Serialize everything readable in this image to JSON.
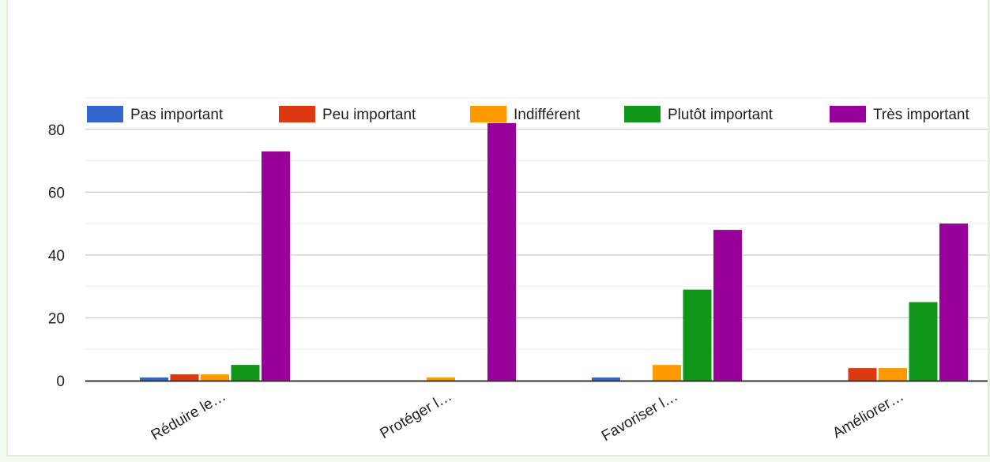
{
  "chart_data": {
    "type": "bar",
    "categories": [
      "Réduire le…",
      "Protéger l…",
      "Favoriser l…",
      "Améliorer…"
    ],
    "series": [
      {
        "name": "Pas important",
        "color": "#3366cc",
        "values": [
          1,
          0,
          1,
          0
        ]
      },
      {
        "name": "Peu important",
        "color": "#dc3912",
        "values": [
          2,
          0,
          0,
          4
        ]
      },
      {
        "name": "Indifférent",
        "color": "#ff9900",
        "values": [
          2,
          1,
          5,
          4
        ]
      },
      {
        "name": "Plutôt important",
        "color": "#109618",
        "values": [
          5,
          0,
          29,
          25
        ]
      },
      {
        "name": "Très important",
        "color": "#990099",
        "values": [
          73,
          82,
          48,
          50
        ]
      }
    ],
    "ylim": [
      0,
      90
    ],
    "yticks": [
      0,
      20,
      40,
      60,
      80
    ],
    "grid": true,
    "legend_position": "top"
  }
}
